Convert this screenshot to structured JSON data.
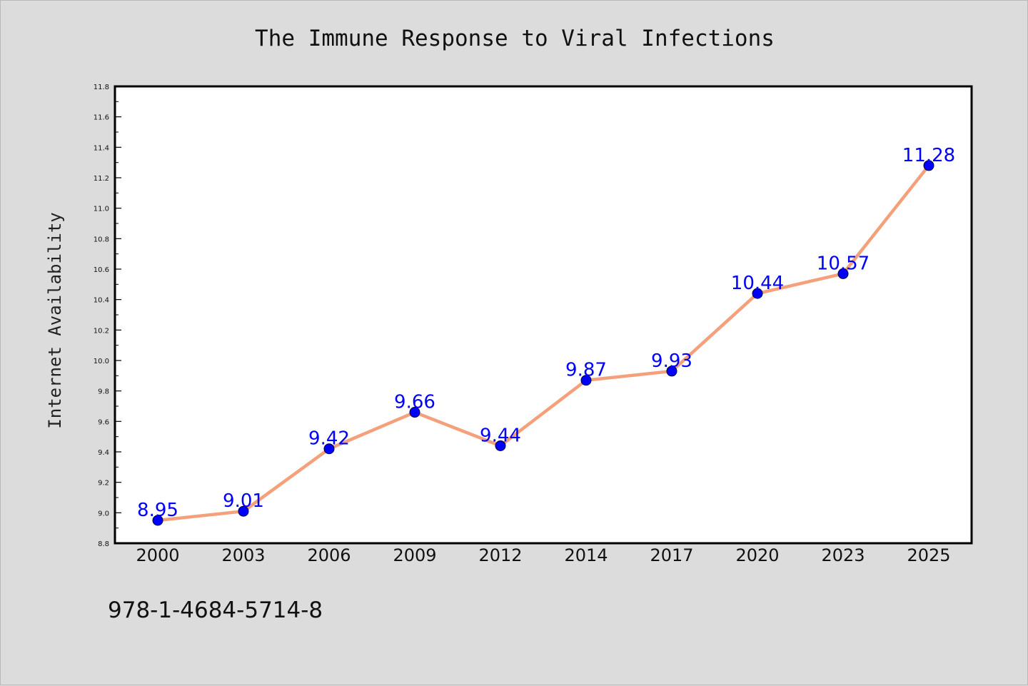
{
  "chart_data": {
    "type": "line",
    "title": "The Immune Response to Viral Infections",
    "xlabel": "",
    "ylabel": "Internet Availability",
    "categories": [
      "2000",
      "2003",
      "2006",
      "2009",
      "2012",
      "2014",
      "2017",
      "2020",
      "2023",
      "2025"
    ],
    "series": [
      {
        "values": [
          8.95,
          9.01,
          9.42,
          9.66,
          9.44,
          9.87,
          9.93,
          10.44,
          10.57,
          11.28
        ],
        "labels": [
          "8.95",
          "9.01",
          "9.42",
          "9.66",
          "9.44",
          "9.87",
          "9.93",
          "10.44",
          "10.57",
          "11.28"
        ]
      }
    ],
    "yticks": [
      "8.8",
      "9.0",
      "9.2",
      "9.4",
      "9.6",
      "9.8",
      "10.0",
      "10.2",
      "10.4",
      "10.6",
      "10.8",
      "11.0",
      "11.2",
      "11.4",
      "11.6",
      "11.8"
    ],
    "ylim": [
      8.8,
      11.8
    ],
    "grid": false,
    "colors": {
      "line": "#f4a07a",
      "marker": "#0000ff",
      "data_label": "#0000ff",
      "plot_background": "#ffffff",
      "page_background": "#dcdcdc"
    }
  },
  "footer": {
    "isbn": "978-1-4684-5714-8"
  }
}
